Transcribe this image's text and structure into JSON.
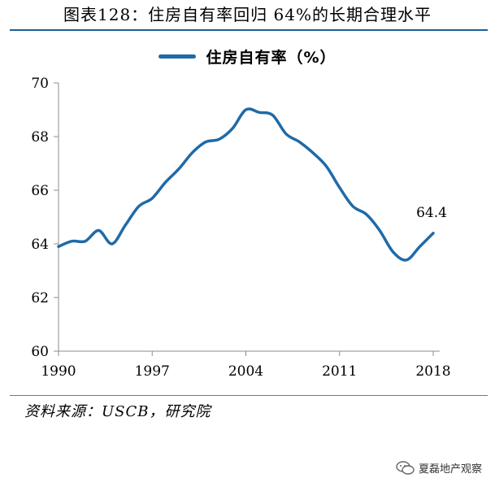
{
  "header": {
    "title": "图表128：住房自有率回归 64%的长期合理水平"
  },
  "legend": {
    "label": "住房自有率（%）"
  },
  "source": {
    "text": "资料来源：USCB，研究院"
  },
  "watermark": {
    "text": "夏磊地产观察"
  },
  "colors": {
    "line": "#1f6aa8",
    "rule": "#1f5f94"
  },
  "chart_data": {
    "type": "line",
    "series": [
      {
        "name": "住房自有率（%）",
        "x": [
          1990,
          1991,
          1992,
          1993,
          1994,
          1995,
          1996,
          1997,
          1998,
          1999,
          2000,
          2001,
          2002,
          2003,
          2004,
          2005,
          2006,
          2007,
          2008,
          2009,
          2010,
          2011,
          2012,
          2013,
          2014,
          2015,
          2016,
          2017,
          2018
        ],
        "values": [
          63.9,
          64.1,
          64.1,
          64.5,
          64.0,
          64.7,
          65.4,
          65.7,
          66.3,
          66.8,
          67.4,
          67.8,
          67.9,
          68.3,
          69.0,
          68.9,
          68.8,
          68.1,
          67.8,
          67.4,
          66.9,
          66.1,
          65.4,
          65.1,
          64.5,
          63.7,
          63.4,
          63.9,
          64.4
        ]
      }
    ],
    "xticks": [
      "1990",
      "1997",
      "2004",
      "2011",
      "2018"
    ],
    "xtick_values": [
      1990,
      1997,
      2004,
      2011,
      2018
    ],
    "yticks": [
      "60",
      "62",
      "64",
      "66",
      "68",
      "70"
    ],
    "ytick_values": [
      60,
      62,
      64,
      66,
      68,
      70
    ],
    "ylim": [
      60,
      70
    ],
    "xlim": [
      1990,
      2018
    ],
    "annotation": {
      "text": "64.4",
      "x": 2018,
      "y": 64.4
    },
    "grid": false,
    "legend_position": "top-center"
  }
}
